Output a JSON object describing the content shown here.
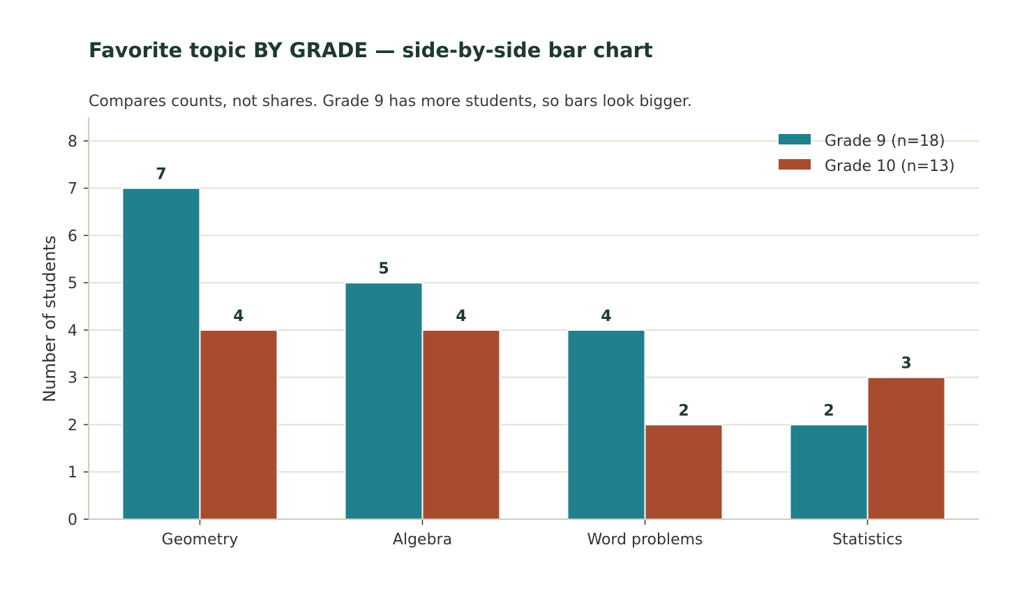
{
  "chart_data": {
    "type": "bar",
    "title": "Favorite topic BY GRADE — side-by-side bar chart",
    "subtitle": "Compares counts, not shares. Grade 9 has more students, so bars look bigger.",
    "xlabel": "",
    "ylabel": "Number of students",
    "categories": [
      "Geometry",
      "Algebra",
      "Word problems",
      "Statistics"
    ],
    "series": [
      {
        "name": "Grade 9 (n=18)",
        "values": [
          7,
          5,
          4,
          2
        ],
        "color": "#20808d"
      },
      {
        "name": "Grade 10 (n=13)",
        "values": [
          4,
          4,
          2,
          3
        ],
        "color": "#a84c30"
      }
    ],
    "ylim": [
      0,
      8.5
    ],
    "yticks": [
      0,
      1,
      2,
      3,
      4,
      5,
      6,
      7,
      8
    ],
    "grid": true,
    "legend_position": "top-right",
    "data_labels": true
  },
  "colors": {
    "title": "#1d3a2f",
    "grid": "#e2e2d4",
    "axis": "#d6cbb8",
    "text": "#333333"
  }
}
